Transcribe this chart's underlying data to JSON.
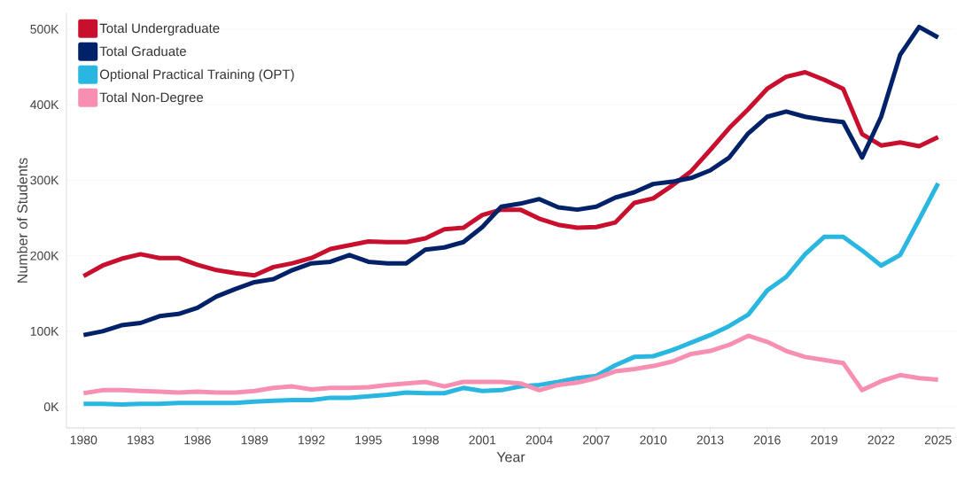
{
  "chart_data": {
    "type": "line",
    "xlabel": "Year",
    "ylabel": "Number of Students",
    "x": [
      1980,
      1981,
      1982,
      1983,
      1984,
      1985,
      1986,
      1987,
      1988,
      1989,
      1990,
      1991,
      1992,
      1993,
      1994,
      1995,
      1996,
      1997,
      1998,
      1999,
      2000,
      2001,
      2002,
      2003,
      2004,
      2005,
      2006,
      2007,
      2008,
      2009,
      2010,
      2011,
      2012,
      2013,
      2014,
      2015,
      2016,
      2017,
      2018,
      2019,
      2020,
      2021,
      2022,
      2023,
      2024,
      2025
    ],
    "series": [
      {
        "name": "Total Undergraduate",
        "color": "#c8102e",
        "values": [
          173000,
          187000,
          196000,
          202000,
          197000,
          197000,
          188000,
          181000,
          177000,
          174000,
          185000,
          190000,
          197000,
          209000,
          214000,
          219000,
          218000,
          218000,
          223000,
          235000,
          237000,
          254000,
          261000,
          261000,
          249000,
          241000,
          237000,
          238000,
          244000,
          270000,
          276000,
          293000,
          312000,
          340000,
          369000,
          394000,
          421000,
          437000,
          443000,
          433000,
          421000,
          361000,
          346000,
          350000,
          345000,
          357000
        ]
      },
      {
        "name": "Total Graduate",
        "color": "#012169",
        "values": [
          95000,
          100000,
          108000,
          111000,
          120000,
          123000,
          131000,
          146000,
          156000,
          165000,
          169000,
          181000,
          190000,
          192000,
          201000,
          192000,
          190000,
          190000,
          208000,
          211000,
          218000,
          238000,
          265000,
          269000,
          275000,
          264000,
          261000,
          265000,
          277000,
          284000,
          295000,
          298000,
          303000,
          313000,
          330000,
          362000,
          384000,
          391000,
          384000,
          380000,
          377000,
          330000,
          384000,
          466000,
          503000,
          489000
        ]
      },
      {
        "name": "Optional Practical Training (OPT)",
        "color": "#29b6e0",
        "values": [
          4000,
          4000,
          3000,
          4000,
          4000,
          5000,
          5000,
          5000,
          5000,
          7000,
          8000,
          9000,
          9000,
          12000,
          12000,
          14000,
          16000,
          19000,
          18000,
          18000,
          25000,
          21000,
          22000,
          27000,
          29000,
          33000,
          38000,
          41000,
          55000,
          66000,
          67000,
          75000,
          85000,
          95000,
          107000,
          122000,
          154000,
          172000,
          202000,
          225000,
          225000,
          207000,
          187000,
          201000,
          248000,
          296000
        ]
      },
      {
        "name": "Total Non-Degree",
        "color": "#f78fb3",
        "values": [
          18000,
          22000,
          22000,
          21000,
          20000,
          19000,
          20000,
          19000,
          19000,
          21000,
          25000,
          27000,
          23000,
          25000,
          25000,
          26000,
          29000,
          31000,
          33000,
          27000,
          33000,
          33000,
          33000,
          31000,
          22000,
          29000,
          32000,
          38000,
          47000,
          50000,
          54000,
          60000,
          70000,
          74000,
          82000,
          94000,
          86000,
          74000,
          66000,
          62000,
          58000,
          22000,
          34000,
          42000,
          38000,
          36000
        ]
      }
    ],
    "xlim": [
      1979.1,
      2025.9
    ],
    "ylim": [
      -28000,
      521000
    ],
    "xticks": [
      1980,
      1983,
      1986,
      1989,
      1992,
      1995,
      1998,
      2001,
      2004,
      2007,
      2010,
      2013,
      2016,
      2019,
      2022,
      2025
    ],
    "yticks": [
      {
        "value": 0,
        "label": "0K"
      },
      {
        "value": 100000,
        "label": "100K"
      },
      {
        "value": 200000,
        "label": "200K"
      },
      {
        "value": 300000,
        "label": "300K"
      },
      {
        "value": 400000,
        "label": "400K"
      },
      {
        "value": 500000,
        "label": "500K"
      }
    ],
    "grid": "y",
    "legend": "top left",
    "marker": "none",
    "line_style": "solid"
  }
}
